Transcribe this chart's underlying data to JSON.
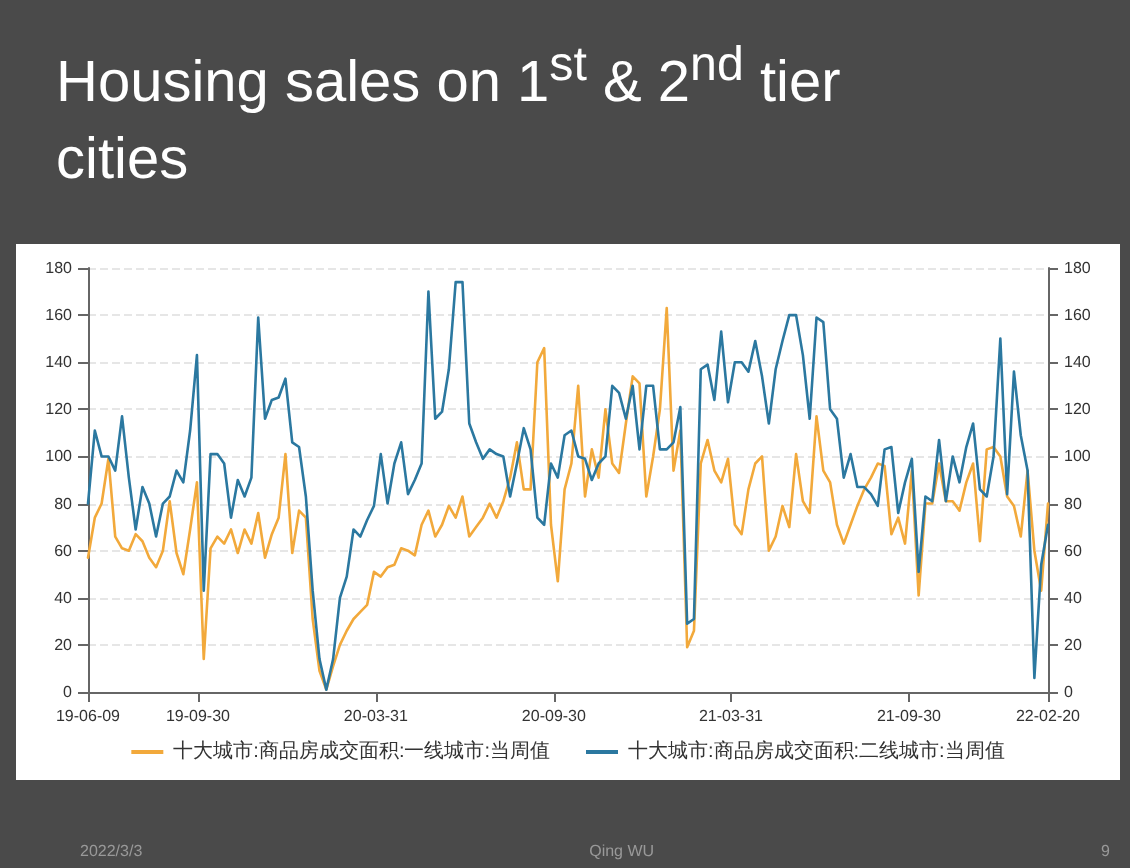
{
  "chart_data": {
    "type": "line",
    "title": "Housing sales on 1$^{st}$ & 2$^{nd}$ tier cities",
    "annotations": [
      "2022/3/3",
      "Qing WU",
      "9"
    ],
    "x": [
      "2019-06-09",
      "2019-06-16",
      "2019-06-23",
      "2019-06-30",
      "2019-07-07",
      "2019-07-14",
      "2019-07-21",
      "2019-07-28",
      "2019-08-04",
      "2019-08-11",
      "2019-08-18",
      "2019-08-25",
      "2019-09-01",
      "2019-09-08",
      "2019-09-15",
      "2019-09-22",
      "2019-09-29",
      "2019-10-06",
      "2019-10-13",
      "2019-10-20",
      "2019-10-27",
      "2019-11-03",
      "2019-11-10",
      "2019-11-17",
      "2019-11-24",
      "2019-12-01",
      "2019-12-08",
      "2019-12-15",
      "2019-12-22",
      "2019-12-29",
      "2020-01-05",
      "2020-01-12",
      "2020-01-19",
      "2020-01-26",
      "2020-02-02",
      "2020-02-09",
      "2020-02-16",
      "2020-02-23",
      "2020-03-01",
      "2020-03-08",
      "2020-03-15",
      "2020-03-22",
      "2020-03-29",
      "2020-04-05",
      "2020-04-12",
      "2020-04-19",
      "2020-04-26",
      "2020-05-03",
      "2020-05-10",
      "2020-05-17",
      "2020-05-24",
      "2020-05-31",
      "2020-06-07",
      "2020-06-14",
      "2020-06-21",
      "2020-06-28",
      "2020-07-05",
      "2020-07-12",
      "2020-07-19",
      "2020-07-26",
      "2020-08-02",
      "2020-08-09",
      "2020-08-16",
      "2020-08-23",
      "2020-08-30",
      "2020-09-06",
      "2020-09-13",
      "2020-09-20",
      "2020-09-27",
      "2020-10-04",
      "2020-10-11",
      "2020-10-18",
      "2020-10-25",
      "2020-11-01",
      "2020-11-08",
      "2020-11-15",
      "2020-11-22",
      "2020-11-29",
      "2020-12-06",
      "2020-12-13",
      "2020-12-20",
      "2020-12-27",
      "2021-01-03",
      "2021-01-10",
      "2021-01-17",
      "2021-01-24",
      "2021-01-31",
      "2021-02-07",
      "2021-02-14",
      "2021-02-21",
      "2021-02-28",
      "2021-03-07",
      "2021-03-14",
      "2021-03-21",
      "2021-03-28",
      "2021-04-04",
      "2021-04-11",
      "2021-04-18",
      "2021-04-25",
      "2021-05-02",
      "2021-05-09",
      "2021-05-16",
      "2021-05-23",
      "2021-05-30",
      "2021-06-06",
      "2021-06-13",
      "2021-06-20",
      "2021-06-27",
      "2021-07-04",
      "2021-07-11",
      "2021-07-18",
      "2021-07-25",
      "2021-08-01",
      "2021-08-08",
      "2021-08-15",
      "2021-08-22",
      "2021-08-29",
      "2021-09-05",
      "2021-09-12",
      "2021-09-19",
      "2021-09-26",
      "2021-10-03",
      "2021-10-10",
      "2021-10-17",
      "2021-10-24",
      "2021-10-31",
      "2021-11-07",
      "2021-11-14",
      "2021-11-21",
      "2021-11-28",
      "2021-12-05",
      "2021-12-12",
      "2021-12-19",
      "2021-12-26",
      "2022-01-02",
      "2022-01-09",
      "2022-01-16",
      "2022-01-23",
      "2022-01-30",
      "2022-02-06",
      "2022-02-13",
      "2022-02-20"
    ],
    "series": [
      {
        "name": "十大城市:商品房成交面积:一线城市:当周值",
        "color": "#f2a93b",
        "values": [
          57,
          74,
          80,
          99,
          66,
          61,
          60,
          67,
          64,
          57,
          53,
          60,
          81,
          59,
          50,
          69,
          89,
          14,
          61,
          66,
          63,
          69,
          59,
          69,
          63,
          76,
          57,
          67,
          74,
          101,
          59,
          77,
          74,
          31,
          9,
          1,
          11,
          20,
          26,
          31,
          34,
          37,
          51,
          49,
          53,
          54,
          61,
          60,
          58,
          71,
          77,
          66,
          71,
          79,
          74,
          83,
          66,
          70,
          74,
          80,
          74,
          81,
          91,
          106,
          86,
          86,
          140,
          146,
          71,
          47,
          86,
          97,
          130,
          83,
          103,
          91,
          120,
          97,
          93,
          114,
          134,
          131,
          83,
          100,
          120,
          163,
          94,
          111,
          19,
          26,
          97,
          107,
          94,
          89,
          99,
          71,
          67,
          86,
          97,
          100,
          60,
          66,
          79,
          70,
          101,
          81,
          76,
          117,
          94,
          89,
          71,
          63,
          71,
          79,
          86,
          91,
          97,
          96,
          67,
          74,
          63,
          94,
          41,
          80,
          80,
          97,
          81,
          81,
          77,
          89,
          97,
          64,
          103,
          104,
          100,
          83,
          79,
          66,
          94,
          60,
          43,
          80
        ]
      },
      {
        "name": "十大城市:商品房成交面积:二线城市:当周值",
        "color": "#2b78a0",
        "values": [
          80,
          111,
          100,
          100,
          94,
          117,
          91,
          69,
          87,
          80,
          66,
          80,
          83,
          94,
          89,
          111,
          143,
          43,
          101,
          101,
          97,
          74,
          90,
          83,
          91,
          159,
          116,
          124,
          125,
          133,
          106,
          104,
          83,
          43,
          14,
          1,
          14,
          40,
          49,
          69,
          66,
          73,
          79,
          101,
          80,
          97,
          106,
          84,
          90,
          97,
          170,
          116,
          119,
          137,
          174,
          174,
          114,
          106,
          99,
          103,
          101,
          100,
          83,
          97,
          112,
          103,
          74,
          71,
          97,
          91,
          109,
          111,
          100,
          99,
          90,
          97,
          100,
          130,
          127,
          116,
          130,
          103,
          130,
          130,
          103,
          103,
          106,
          121,
          29,
          31,
          137,
          139,
          124,
          153,
          123,
          140,
          140,
          136,
          149,
          134,
          114,
          137,
          149,
          160,
          160,
          143,
          116,
          159,
          157,
          120,
          116,
          91,
          101,
          87,
          87,
          84,
          79,
          103,
          104,
          76,
          89,
          99,
          51,
          83,
          81,
          107,
          81,
          100,
          89,
          104,
          114,
          86,
          83,
          100,
          150,
          84,
          136,
          109,
          94,
          6,
          54,
          71
        ]
      }
    ],
    "xlim": [
      "2019-06-09",
      "2022-02-20"
    ],
    "xticks": [
      {
        "value": "2019-06-09",
        "label": "19-06-09"
      },
      {
        "value": "2019-09-30",
        "label": "19-09-30"
      },
      {
        "value": "2020-03-31",
        "label": "20-03-31"
      },
      {
        "value": "2020-09-30",
        "label": "20-09-30"
      },
      {
        "value": "2021-03-31",
        "label": "21-03-31"
      },
      {
        "value": "2021-09-30",
        "label": "21-09-30"
      },
      {
        "value": "2022-02-20",
        "label": "22-02-20"
      }
    ],
    "ylim": [
      0,
      180
    ],
    "yticks": [
      0,
      20,
      40,
      60,
      80,
      100,
      120,
      140,
      160,
      180
    ],
    "y2lim": [
      0,
      180
    ],
    "y2ticks": [
      0,
      20,
      40,
      60,
      80,
      100,
      120,
      140,
      160,
      180
    ],
    "grid": "y",
    "legend": "bottom",
    "marker": "none"
  }
}
